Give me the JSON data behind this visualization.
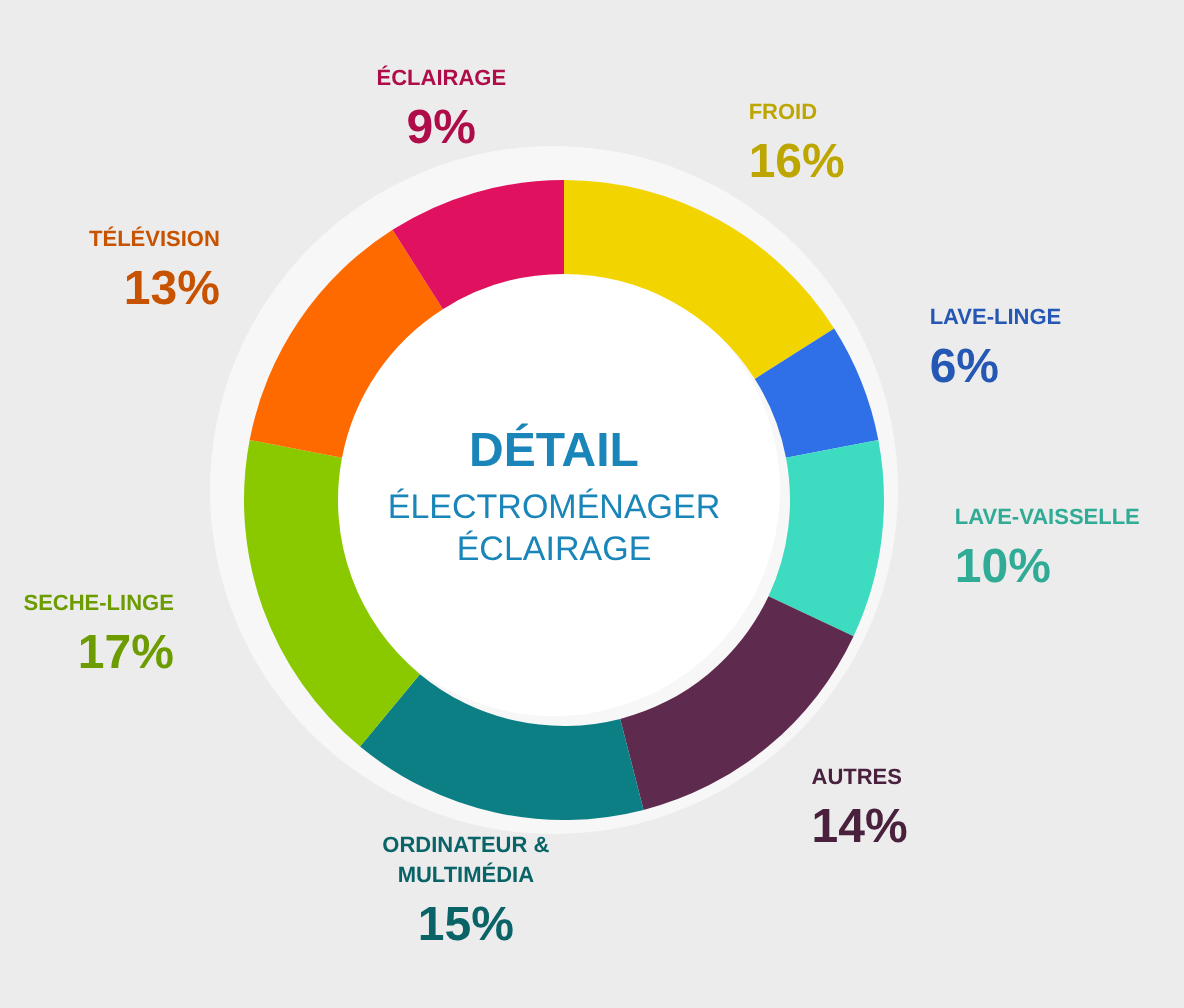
{
  "chart_data": {
    "type": "donut",
    "title": "DÉTAIL",
    "subtitle": "ÉLECTROMÉNAGER ÉCLAIRAGE",
    "categories": [
      "FROID",
      "LAVE-LINGE",
      "LAVE-VAISSELLE",
      "AUTRES",
      "ORDINATEUR & MULTIMÉDIA",
      "SECHE-LINGE",
      "TÉLÉVISION",
      "ÉCLAIRAGE"
    ],
    "values": [
      16,
      6,
      10,
      14,
      15,
      17,
      13,
      9
    ],
    "value_labels": [
      "16%",
      "6%",
      "10%",
      "14%",
      "15%",
      "17%",
      "13%",
      "9%"
    ],
    "colors": [
      "#f2d500",
      "#2f6fe8",
      "#3ddbc0",
      "#5e2a4e",
      "#0b7f84",
      "#8ac800",
      "#ff6a00",
      "#e0115f"
    ]
  }
}
